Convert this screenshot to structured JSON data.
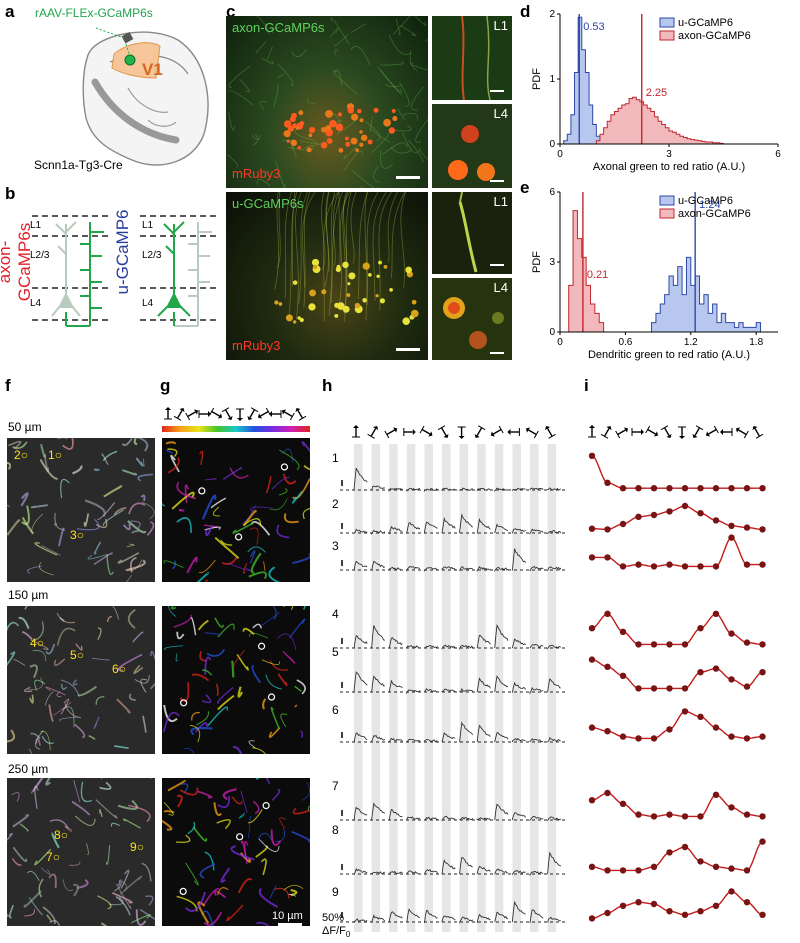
{
  "panels": {
    "a": "a",
    "b": "b",
    "c": "c",
    "d": "d",
    "e": "e",
    "f": "f",
    "g": "g",
    "h": "h",
    "i": "i"
  },
  "panel_a": {
    "virus": "rAAV-FLEx-GCaMP6s",
    "area": "V1",
    "mouse_line": "Scnn1a-Tg3-Cre"
  },
  "panel_b": {
    "left_title": "axon-GCaMP6s",
    "right_title": "u-GCaMP6",
    "layers": [
      "L1",
      "L2/3",
      "L4"
    ]
  },
  "panel_c": {
    "top_label": "axon-GCaMP6s",
    "bottom_label": "u-GCaMP6s",
    "red_label": "mRuby3",
    "inset_labels": [
      "L1",
      "L4"
    ]
  },
  "panel_f": {
    "depths": [
      "50 µm",
      "150 µm",
      "250 µm"
    ],
    "roi_numbers": [
      "1",
      "2",
      "3",
      "4",
      "5",
      "6",
      "7",
      "8",
      "9"
    ]
  },
  "panel_g": {
    "scale_bar": "10 µm"
  },
  "panel_h": {
    "trace_numbers": [
      "1",
      "2",
      "3",
      "4",
      "5",
      "6",
      "7",
      "8",
      "9"
    ],
    "scale_label_1": "50%",
    "scale_label_2": "ΔF/F",
    "scale_label_sub": "0"
  },
  "chart_data": [
    {
      "id": "d",
      "type": "histogram",
      "xlabel": "Axonal green to red ratio (A.U.)",
      "ylabel": "PDF",
      "xlim": [
        0,
        6
      ],
      "ylim": [
        0,
        2.0
      ],
      "xticks": [
        0,
        3,
        6
      ],
      "yticks": [
        0,
        1,
        2
      ],
      "legend_position": "top-right",
      "series": [
        {
          "name": "u-GCaMP6",
          "color": "#2e49a6",
          "fill": "#b8c7ee",
          "bin_width": 0.1,
          "bins_start": 0.1,
          "values": [
            0.05,
            0.15,
            0.45,
            1.1,
            1.95,
            1.45,
            1.1,
            0.6,
            0.3,
            0.12,
            0.05
          ]
        },
        {
          "name": "axon-GCaMP6",
          "color": "#c0272d",
          "fill": "#f2b9bd",
          "bin_width": 0.1,
          "bins_start": 1.0,
          "values": [
            0.05,
            0.15,
            0.25,
            0.35,
            0.45,
            0.5,
            0.55,
            0.6,
            0.62,
            0.7,
            0.72,
            0.68,
            0.65,
            0.6,
            0.55,
            0.5,
            0.42,
            0.35,
            0.3,
            0.25,
            0.2,
            0.18,
            0.15,
            0.12,
            0.1,
            0.08,
            0.07,
            0.06,
            0.05,
            0.04,
            0.03,
            0.03,
            0.02,
            0.02,
            0.01
          ]
        }
      ],
      "markers": [
        {
          "x": 0.53,
          "label": "0.53",
          "color": "#2e49a6"
        },
        {
          "x": 2.25,
          "label": "2.25",
          "color": "#c0272d"
        }
      ]
    },
    {
      "id": "e",
      "type": "histogram",
      "xlabel": "Dendritic green to red ratio (A.U.)",
      "ylabel": "PDF",
      "xlim": [
        0,
        2.0
      ],
      "ylim": [
        0,
        6
      ],
      "xticks": [
        0,
        0.6,
        1.2,
        1.8
      ],
      "yticks": [
        0,
        3,
        6
      ],
      "legend_position": "top-right",
      "series": [
        {
          "name": "u-GCaMP6",
          "color": "#2e49a6",
          "fill": "#b8c7ee",
          "bin_width": 0.04,
          "bins_start": 0.84,
          "values": [
            0.4,
            0.8,
            1.2,
            1.6,
            2.4,
            2.0,
            2.8,
            1.6,
            3.2,
            2.0,
            2.4,
            1.2,
            1.6,
            0.8,
            1.2,
            0.4,
            0.8,
            0.4,
            0.4,
            0.2,
            0.4,
            0.2,
            0.2,
            0.2,
            0.4
          ]
        },
        {
          "name": "axon-GCaMP6",
          "color": "#c0272d",
          "fill": "#f2b9bd",
          "bin_width": 0.04,
          "bins_start": 0.08,
          "values": [
            2.0,
            5.2,
            4.0,
            3.2,
            2.0,
            1.2,
            0.8,
            0.4
          ]
        }
      ],
      "markers": [
        {
          "x": 1.24,
          "label": "1.24",
          "color": "#2e49a6"
        },
        {
          "x": 0.21,
          "label": "0.21",
          "color": "#c0272d"
        }
      ]
    },
    {
      "id": "i",
      "type": "line",
      "description_directions": 12,
      "series": [
        {
          "name": "1",
          "values": [
            0.95,
            0.2,
            0.05,
            0.05,
            0.05,
            0.05,
            0.05,
            0.05,
            0.05,
            0.05,
            0.05,
            0.05
          ]
        },
        {
          "name": "2",
          "values": [
            0.12,
            0.1,
            0.25,
            0.45,
            0.5,
            0.6,
            0.75,
            0.55,
            0.35,
            0.2,
            0.15,
            0.1
          ]
        },
        {
          "name": "3",
          "values": [
            0.35,
            0.35,
            0.1,
            0.15,
            0.1,
            0.15,
            0.1,
            0.1,
            0.1,
            0.9,
            0.15,
            0.15
          ]
        },
        {
          "name": "4",
          "values": [
            0.55,
            0.95,
            0.45,
            0.1,
            0.1,
            0.1,
            0.1,
            0.55,
            0.95,
            0.4,
            0.15,
            0.1
          ]
        },
        {
          "name": "5",
          "values": [
            0.9,
            0.7,
            0.45,
            0.1,
            0.1,
            0.1,
            0.1,
            0.55,
            0.65,
            0.35,
            0.15,
            0.55
          ]
        },
        {
          "name": "6",
          "values": [
            0.4,
            0.3,
            0.15,
            0.1,
            0.1,
            0.35,
            0.85,
            0.7,
            0.4,
            0.15,
            0.1,
            0.15
          ]
        },
        {
          "name": "7",
          "values": [
            0.55,
            0.75,
            0.45,
            0.15,
            0.1,
            0.15,
            0.1,
            0.1,
            0.7,
            0.35,
            0.15,
            0.1
          ]
        },
        {
          "name": "8",
          "values": [
            0.2,
            0.1,
            0.1,
            0.1,
            0.2,
            0.6,
            0.75,
            0.35,
            0.2,
            0.15,
            0.1,
            0.9
          ]
        },
        {
          "name": "9",
          "values": [
            0.1,
            0.25,
            0.45,
            0.55,
            0.5,
            0.3,
            0.2,
            0.3,
            0.45,
            0.85,
            0.55,
            0.2
          ]
        }
      ]
    }
  ]
}
